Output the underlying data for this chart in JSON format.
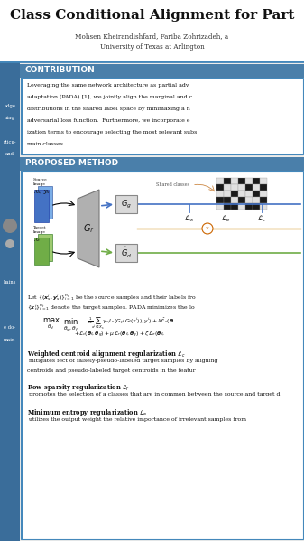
{
  "title": "Class Conditional Alignment for Part",
  "authors": "Mohsen Kheirandishfard, Fariba Zohrizadeh, a",
  "affiliation": "University of Texas at Arlington",
  "contribution_title": "CONTRIBUTION",
  "contribution_lines": [
    "Leveraging the same network architecture as partial adv",
    "adaptation (PADA) [1], we jointly align the marginal and c",
    "distributions in the shared label space by minimaxing a n",
    "adversarial loss function.  Furthermore, we incorporate e",
    "ization terms to encourage selecting the most relevant subs",
    "main classes."
  ],
  "proposed_method_title": "PROPOSED METHOD",
  "para1_bold": "Weighted centroid alignment regularization ",
  "para1_bold_math": "$\\mathcal{L}_c$",
  "para1_text1": " mitigates",
  "para1_text2": "fect of falsely-pseudo-labeled target samples by aligning",
  "para1_text3": "centroids and pseudo-labeled target centroids in the featur",
  "para2_bold": "Row-sparsity regularization ",
  "para2_bold_math": "$\\mathcal{L}_r$",
  "para2_text1": " promotes the selection of a",
  "para2_text2": "classes that are in common between the source and target d",
  "para3_bold": "Minimum entropy regularization ",
  "para3_bold_math": "$\\mathcal{L}_e$",
  "para3_text1": " utilizes the output",
  "para3_text2": "weight the relative importance of irrelevant samples from",
  "bg_color": "#edecea",
  "white": "#ffffff",
  "section_bar_color": "#4a7faa",
  "blue_sidebar": "#3a6d9a",
  "border_blue": "#4488bb",
  "grid_cells": [
    [
      0,
      1,
      0,
      1,
      0,
      1,
      0
    ],
    [
      1,
      0,
      0,
      0,
      1,
      0,
      1
    ],
    [
      0,
      0,
      1,
      0,
      0,
      1,
      0
    ],
    [
      1,
      1,
      0,
      1,
      0,
      0,
      1
    ],
    [
      0,
      1,
      1,
      0,
      1,
      1,
      0
    ]
  ]
}
